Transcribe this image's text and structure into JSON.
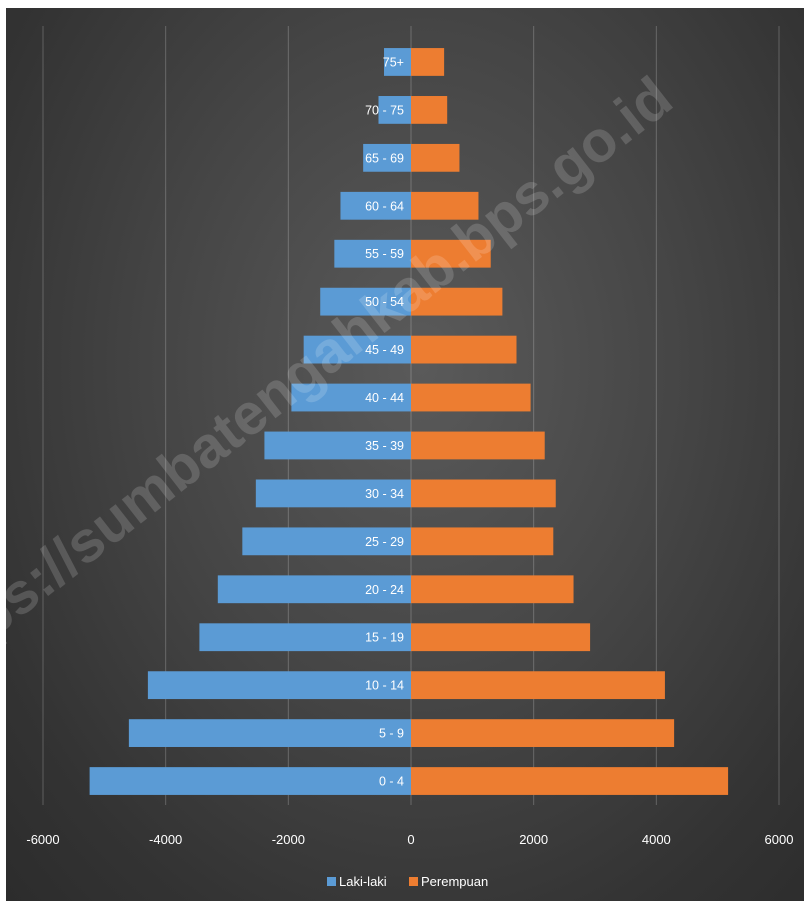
{
  "watermark": "https://sumbatengahkab.bps.go.id",
  "chart_data": {
    "type": "bar",
    "orientation": "horizontal",
    "subtype": "population-pyramid",
    "title": "",
    "xlabel": "",
    "ylabel": "",
    "xlim": [
      -6000,
      6000
    ],
    "x_ticks": [
      -6000,
      -4000,
      -2000,
      0,
      2000,
      4000,
      6000
    ],
    "grid": true,
    "legend_position": "bottom",
    "categories": [
      "0 - 4",
      "5 - 9",
      "10 - 14",
      "15 - 19",
      "20 - 24",
      "25 - 29",
      "30 - 34",
      "35 - 39",
      "40 - 44",
      "45 - 49",
      "50 - 54",
      "55 - 59",
      "60 - 64",
      "65 - 69",
      "70 - 75",
      "75+"
    ],
    "series": [
      {
        "name": "Laki-laki",
        "color": "#5b9bd5",
        "values": [
          -5240,
          -4600,
          -4290,
          -3450,
          -3150,
          -2750,
          -2530,
          -2390,
          -1950,
          -1750,
          -1480,
          -1250,
          -1150,
          -780,
          -530,
          -440
        ]
      },
      {
        "name": "Perempuan",
        "color": "#ed7d31",
        "values": [
          5170,
          4290,
          4140,
          2920,
          2650,
          2320,
          2360,
          2180,
          1950,
          1720,
          1490,
          1300,
          1100,
          790,
          590,
          540
        ]
      }
    ]
  }
}
